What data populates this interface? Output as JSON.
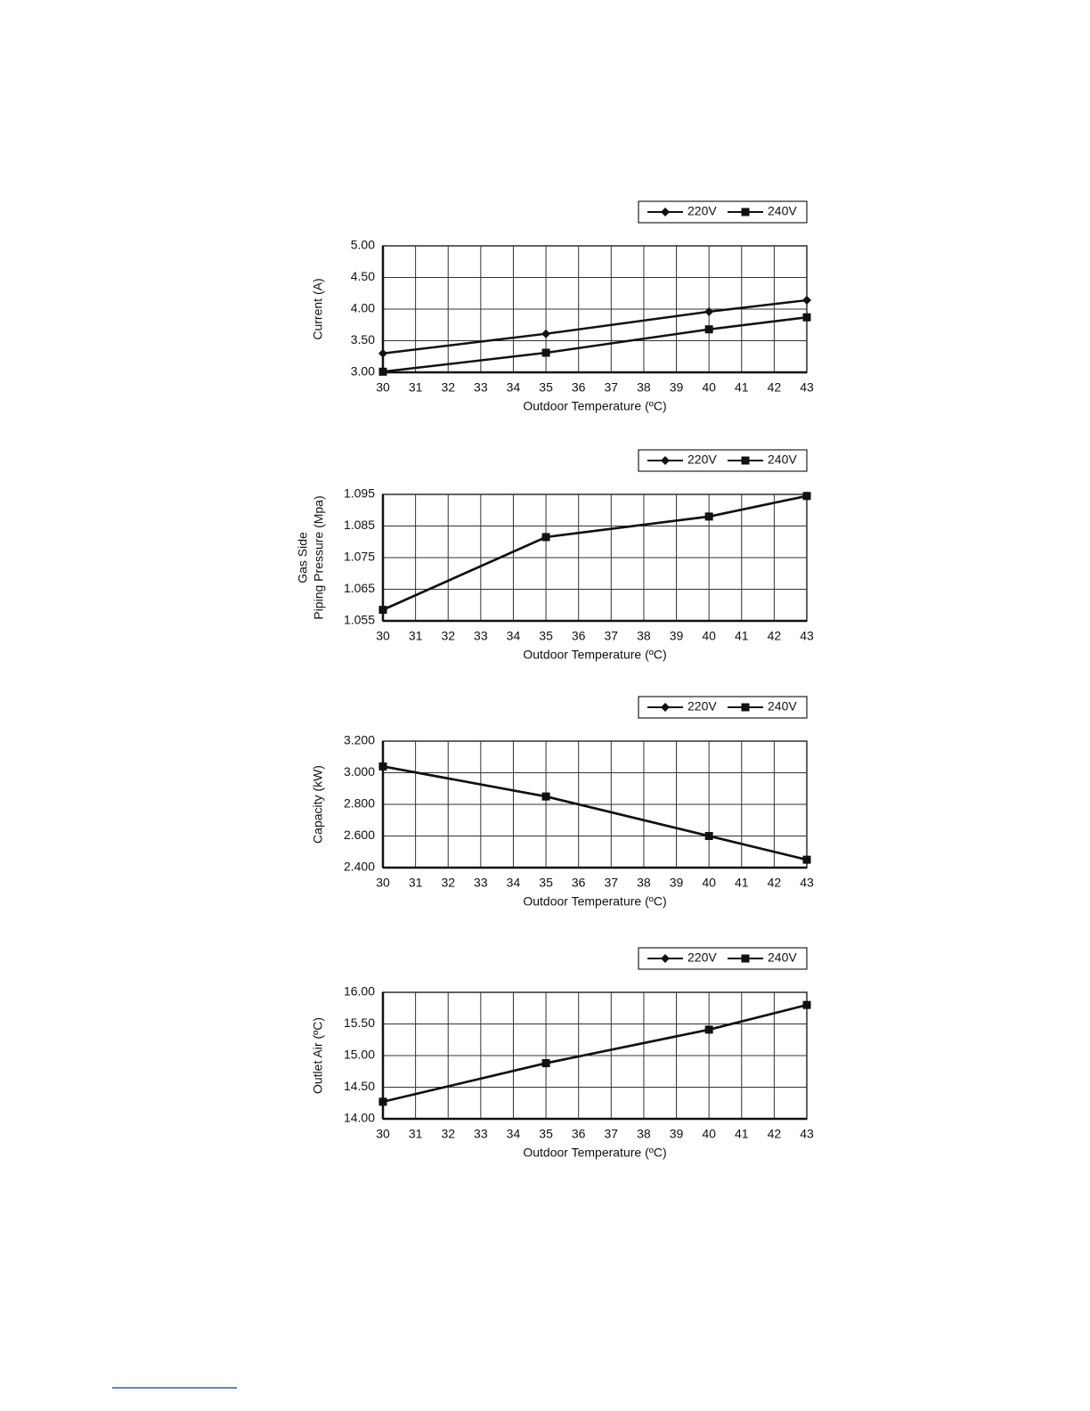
{
  "chart_data": [
    {
      "type": "line",
      "y_label": "Current (A)",
      "x_label": "Outdoor Temperature (ºC)",
      "x": [
        30,
        35,
        40,
        43
      ],
      "series": [
        {
          "name": "220V",
          "color": "#111111",
          "marker": "diamond",
          "values": [
            3.3,
            3.61,
            3.96,
            4.14
          ]
        },
        {
          "name": "240V",
          "color": "#111111",
          "marker": "square",
          "values": [
            3.01,
            3.31,
            3.68,
            3.87
          ]
        }
      ],
      "xlim": [
        30,
        43
      ],
      "xticks": [
        30,
        31,
        32,
        33,
        34,
        35,
        36,
        37,
        38,
        39,
        40,
        41,
        42,
        43
      ],
      "ylim": [
        3,
        5
      ],
      "yticks": [
        {
          "value": 3,
          "label": "3.00"
        },
        {
          "value": 3.5,
          "label": "3.50"
        },
        {
          "value": 4,
          "label": "4.00"
        },
        {
          "value": 4.5,
          "label": "4.50"
        },
        {
          "value": 5,
          "label": "5.00"
        }
      ],
      "grid": true,
      "legend": "top-right"
    },
    {
      "type": "line",
      "y_label": [
        "Gas Side",
        "Piping Pressure (Mpa)"
      ],
      "x_label": "Outdoor Temperature (ºC)",
      "x": [
        30,
        35,
        40,
        43
      ],
      "series": [
        {
          "name": "220V",
          "color": "#111111",
          "marker": "diamond",
          "values": [
            1.0585,
            1.0815,
            1.088,
            1.0945
          ]
        },
        {
          "name": "240V",
          "color": "#111111",
          "marker": "square",
          "values": [
            1.0585,
            1.0815,
            1.088,
            1.0945
          ]
        }
      ],
      "xlim": [
        30,
        43
      ],
      "xticks": [
        30,
        31,
        32,
        33,
        34,
        35,
        36,
        37,
        38,
        39,
        40,
        41,
        42,
        43
      ],
      "ylim": [
        1.055,
        1.095
      ],
      "yticks": [
        1.055,
        1.065,
        1.075,
        1.085,
        1.095
      ],
      "grid": true,
      "legend": "top-right"
    },
    {
      "type": "line",
      "y_label": "Capacity (kW)",
      "x_label": "Outdoor Temperature (ºC)",
      "x": [
        30,
        35,
        40,
        43
      ],
      "series": [
        {
          "name": "220V",
          "color": "#111111",
          "marker": "diamond",
          "values": [
            3.04,
            2.85,
            2.6,
            2.45
          ]
        },
        {
          "name": "240V",
          "color": "#111111",
          "marker": "square",
          "values": [
            3.04,
            2.85,
            2.6,
            2.45
          ]
        }
      ],
      "xlim": [
        30,
        43
      ],
      "xticks": [
        30,
        31,
        32,
        33,
        34,
        35,
        36,
        37,
        38,
        39,
        40,
        41,
        42,
        43
      ],
      "ylim": [
        2.4,
        3.2
      ],
      "yticks": [
        {
          "value": 2.4,
          "label": "2.400"
        },
        {
          "value": 2.6,
          "label": "2.600"
        },
        {
          "value": 2.8,
          "label": "2.800"
        },
        {
          "value": 3,
          "label": "3.000"
        },
        {
          "value": 3.2,
          "label": "3.200"
        }
      ],
      "grid": true,
      "legend": "top-right"
    },
    {
      "type": "line",
      "y_label": "Outlet Air (ºC)",
      "x_label": "Outdoor Temperature (ºC)",
      "x": [
        30,
        35,
        40,
        43
      ],
      "series": [
        {
          "name": "220V",
          "color": "#111111",
          "marker": "diamond",
          "values": [
            14.27,
            14.88,
            15.41,
            15.8
          ]
        },
        {
          "name": "240V",
          "color": "#111111",
          "marker": "square",
          "values": [
            14.27,
            14.88,
            15.41,
            15.8
          ]
        }
      ],
      "xlim": [
        30,
        43
      ],
      "xticks": [
        30,
        31,
        32,
        33,
        34,
        35,
        36,
        37,
        38,
        39,
        40,
        41,
        42,
        43
      ],
      "ylim": [
        14,
        16
      ],
      "yticks": [
        {
          "value": 14,
          "label": "14.00"
        },
        {
          "value": 14.5,
          "label": "14.50"
        },
        {
          "value": 15,
          "label": "15.00"
        },
        {
          "value": 15.5,
          "label": "15.50"
        },
        {
          "value": 16,
          "label": "16.00"
        }
      ],
      "grid": true,
      "legend": "top-right"
    }
  ]
}
